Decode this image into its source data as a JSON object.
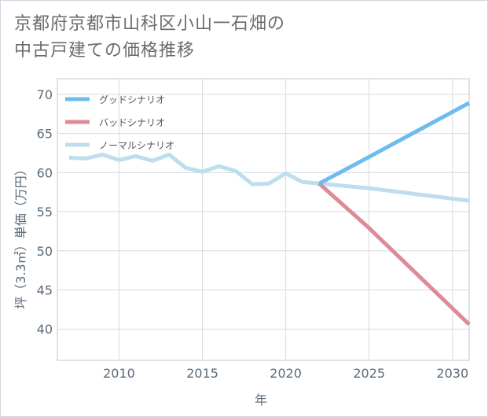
{
  "title_line1": "京都府京都市山科区小山一石畑の",
  "title_line2": "中古戸建ての価格推移",
  "chart_data": {
    "type": "line",
    "xlabel": "年",
    "ylabel": "坪（3.3㎡）単価（万円）",
    "xlim": [
      2006.3,
      2031
    ],
    "ylim": [
      36,
      72
    ],
    "x_ticks": [
      2010,
      2015,
      2020,
      2025,
      2030
    ],
    "y_ticks": [
      40,
      45,
      50,
      55,
      60,
      65,
      70
    ],
    "grid": true,
    "legend_position": "top-left",
    "series": [
      {
        "name": "グッドシナリオ",
        "color": "#6cbcee",
        "x": [
          2022,
          2025,
          2031
        ],
        "y": [
          58.6,
          62.0,
          68.9
        ]
      },
      {
        "name": "バッドシナリオ",
        "color": "#dd8b95",
        "x": [
          2022,
          2025,
          2031
        ],
        "y": [
          58.6,
          52.9,
          40.6
        ]
      },
      {
        "name": "ノーマルシナリオ",
        "color": "#bddeed",
        "x": [
          2007,
          2008,
          2009,
          2010,
          2011,
          2012,
          2013,
          2014,
          2015,
          2016,
          2017,
          2018,
          2019,
          2020,
          2021,
          2022,
          2025,
          2028,
          2031
        ],
        "y": [
          61.9,
          61.8,
          62.3,
          61.6,
          62.1,
          61.5,
          62.3,
          60.6,
          60.1,
          60.8,
          60.2,
          58.5,
          58.6,
          59.9,
          58.8,
          58.6,
          58.0,
          57.2,
          56.4
        ]
      }
    ]
  }
}
